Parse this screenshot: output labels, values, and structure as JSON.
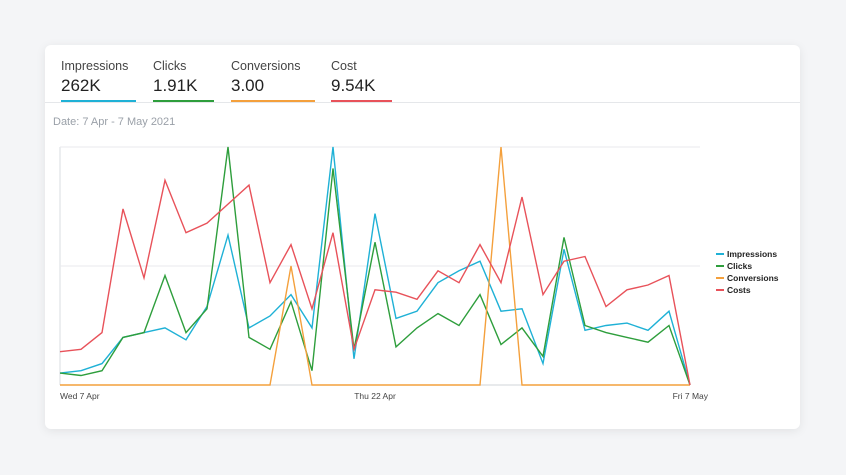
{
  "metrics": [
    {
      "label": "Impressions",
      "value": "262K",
      "color": "#1fb1d6"
    },
    {
      "label": "Clicks",
      "value": "1.91K",
      "color": "#2e9e3c"
    },
    {
      "label": "Conversions",
      "value": "3.00",
      "color": "#f4a03c"
    },
    {
      "label": "Cost",
      "value": "9.54K",
      "color": "#e8525a"
    }
  ],
  "date_range": "Date: 7 Apr - 7 May 2021",
  "chart_data": {
    "type": "line",
    "x": [
      "Wed 7 Apr",
      "8 Apr",
      "9 Apr",
      "10 Apr",
      "11 Apr",
      "12 Apr",
      "13 Apr",
      "14 Apr",
      "15 Apr",
      "16 Apr",
      "17 Apr",
      "18 Apr",
      "19 Apr",
      "20 Apr",
      "21 Apr",
      "Thu 22 Apr",
      "23 Apr",
      "24 Apr",
      "25 Apr",
      "26 Apr",
      "27 Apr",
      "28 Apr",
      "29 Apr",
      "30 Apr",
      "1 May",
      "2 May",
      "3 May",
      "4 May",
      "5 May",
      "6 May",
      "Fri 7 May"
    ],
    "x_tick_labels": [
      "Wed 7 Apr",
      "Thu 22 Apr",
      "Fri 7 May"
    ],
    "x_tick_index": [
      0,
      15,
      30
    ],
    "ylim": [
      0,
      2
    ],
    "grid": true,
    "legend_position": "right",
    "series": [
      {
        "name": "Impressions",
        "color": "#1fb1d6",
        "values": [
          0.1,
          0.12,
          0.18,
          0.4,
          0.44,
          0.48,
          0.38,
          0.66,
          1.26,
          0.48,
          0.58,
          0.76,
          0.48,
          2.0,
          0.22,
          1.44,
          0.56,
          0.62,
          0.86,
          0.96,
          1.04,
          0.62,
          0.64,
          0.18,
          1.14,
          0.46,
          0.5,
          0.52,
          0.46,
          0.62,
          0.0
        ]
      },
      {
        "name": "Clicks",
        "color": "#2e9e3c",
        "values": [
          0.1,
          0.08,
          0.12,
          0.4,
          0.44,
          0.92,
          0.44,
          0.64,
          2.0,
          0.4,
          0.3,
          0.7,
          0.12,
          1.82,
          0.3,
          1.2,
          0.32,
          0.48,
          0.6,
          0.5,
          0.76,
          0.34,
          0.48,
          0.24,
          1.24,
          0.5,
          0.44,
          0.4,
          0.36,
          0.5,
          0.0
        ]
      },
      {
        "name": "Conversions",
        "color": "#f4a03c",
        "values": [
          0,
          0,
          0,
          0,
          0,
          0,
          0,
          0,
          0,
          0,
          0,
          1.0,
          0,
          0,
          0,
          0,
          0,
          0,
          0,
          0,
          0,
          2.0,
          0,
          0,
          0,
          0,
          0,
          0,
          0,
          0,
          0
        ]
      },
      {
        "name": "Costs",
        "color": "#e8525a",
        "values": [
          0.28,
          0.3,
          0.44,
          1.48,
          0.9,
          1.72,
          1.28,
          1.36,
          1.52,
          1.68,
          0.86,
          1.18,
          0.64,
          1.28,
          0.3,
          0.8,
          0.78,
          0.72,
          0.96,
          0.86,
          1.18,
          0.86,
          1.58,
          0.76,
          1.04,
          1.08,
          0.66,
          0.8,
          0.84,
          0.92,
          0.0
        ]
      }
    ]
  }
}
